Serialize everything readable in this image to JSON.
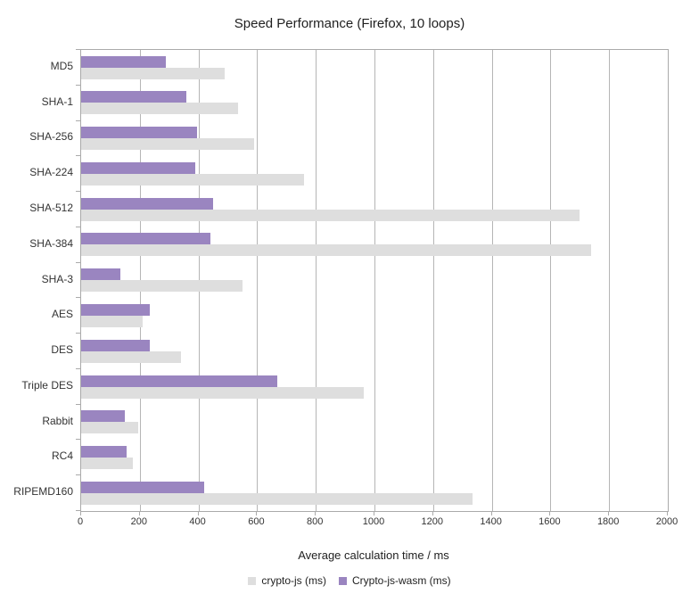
{
  "title": "Speed Performance (Firefox, 10 loops)",
  "chart_data": {
    "type": "bar",
    "orientation": "horizontal",
    "title": "Speed Performance (Firefox, 10 loops)",
    "xlabel": "Average calculation time / ms",
    "ylabel": "",
    "xlim": [
      0,
      2000
    ],
    "xticks": [
      0,
      200,
      400,
      600,
      800,
      1000,
      1200,
      1400,
      1600,
      1800,
      2000
    ],
    "grid": true,
    "legend_position": "bottom",
    "categories": [
      "MD5",
      "SHA-1",
      "SHA-256",
      "SHA-224",
      "SHA-512",
      "SHA-384",
      "SHA-3",
      "AES",
      "DES",
      "Triple DES",
      "Rabbit",
      "RC4",
      "RIPEMD160"
    ],
    "series": [
      {
        "name": "crypto-js (ms)",
        "color": "#dedede",
        "values": [
          490,
          535,
          590,
          760,
          1700,
          1740,
          550,
          210,
          340,
          965,
          195,
          175,
          1335
        ]
      },
      {
        "name": "Crypto-js-wasm (ms)",
        "color": "#9a85c0",
        "values": [
          290,
          360,
          395,
          390,
          450,
          440,
          135,
          235,
          235,
          670,
          150,
          155,
          420
        ]
      }
    ]
  },
  "colors": {
    "grid": "#b5b5b5",
    "axis": "#aaaaaa",
    "text": "#333333",
    "background": "#ffffff"
  }
}
